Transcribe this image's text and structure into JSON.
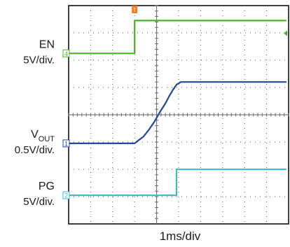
{
  "chart_data": {
    "type": "line",
    "title": "",
    "xlabel": "1ms/div",
    "divisions": {
      "x": 10,
      "y": 8
    },
    "trigger_marker": "T",
    "channels": [
      {
        "id": "4",
        "name": "EN",
        "scale": "5V/div.",
        "color": "#4caf2a",
        "t": [
          -4.1,
          -1.0,
          -1.0,
          5.9
        ],
        "y": [
          2.25,
          2.25,
          3.45,
          3.45
        ]
      },
      {
        "id": "1",
        "name": "V",
        "name_sub": "OUT",
        "scale": "0.5V/div.",
        "color": "#24469e",
        "t": [
          -4.1,
          -1.0,
          -0.85,
          -0.6,
          -0.35,
          -0.1,
          0.15,
          0.4,
          0.6,
          0.75,
          0.9,
          1.1,
          5.9
        ],
        "y": [
          -1.05,
          -1.05,
          -0.95,
          -0.8,
          -0.55,
          -0.25,
          0.1,
          0.42,
          0.72,
          0.92,
          1.1,
          1.2,
          1.2
        ]
      },
      {
        "id": "2",
        "name": "PG",
        "scale": "5V/div.",
        "color": "#3ebfd0",
        "t": [
          -4.1,
          0.9,
          0.9,
          5.9
        ],
        "y": [
          -2.95,
          -2.95,
          -2.0,
          -2.0
        ]
      }
    ]
  }
}
